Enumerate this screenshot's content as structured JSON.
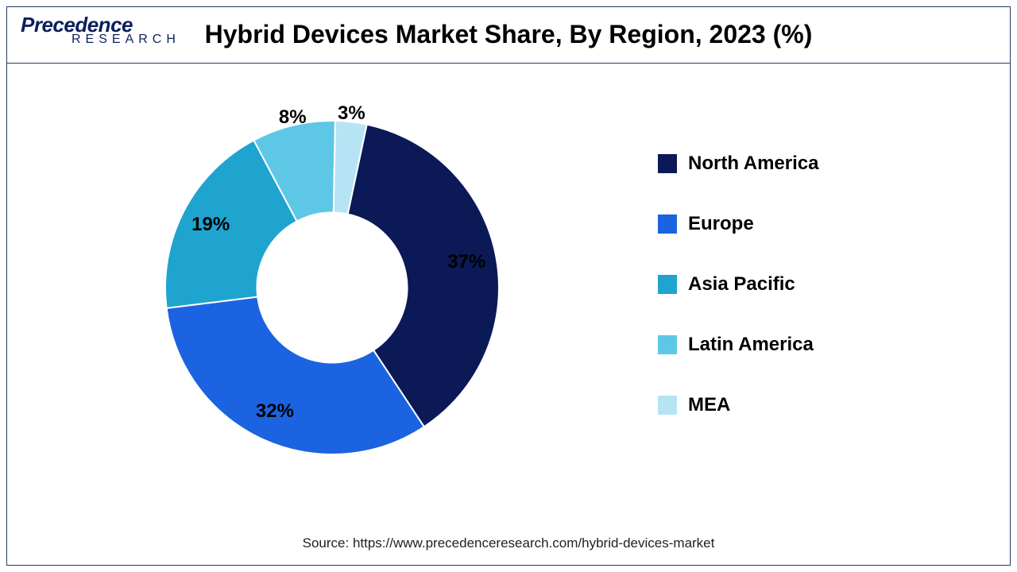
{
  "logo": {
    "top": "Precedence",
    "bottom": "RESEARCH"
  },
  "title": "Hybrid Devices Market Share, By Region, 2023 (%)",
  "source": "Source: https://www.precedenceresearch.com/hybrid-devices-market",
  "chart": {
    "type": "donut",
    "background_color": "#ffffff",
    "border_color": "#2a3a6a",
    "inner_radius_pct": 45,
    "outer_radius_pct": 100,
    "start_angle_deg": 12,
    "label_fontsize": 24,
    "label_fontweight": 700,
    "label_color": "#000000",
    "title_fontsize": 32,
    "title_fontweight": 700,
    "slices": [
      {
        "label": "North America",
        "value": 37,
        "color": "#0b1957",
        "display": "37%"
      },
      {
        "label": "Europe",
        "value": 32,
        "color": "#1b63e0",
        "display": "32%"
      },
      {
        "label": "Asia Pacific",
        "value": 19,
        "color": "#1ea4cf",
        "display": "19%"
      },
      {
        "label": "Latin America",
        "value": 8,
        "color": "#5ec7e6",
        "display": "8%"
      },
      {
        "label": "MEA",
        "value": 3,
        "color": "#b6e4f4",
        "display": "3%"
      }
    ],
    "legend": {
      "position": "right",
      "fontsize": 24,
      "fontweight": 700,
      "swatch_size": 24
    }
  }
}
